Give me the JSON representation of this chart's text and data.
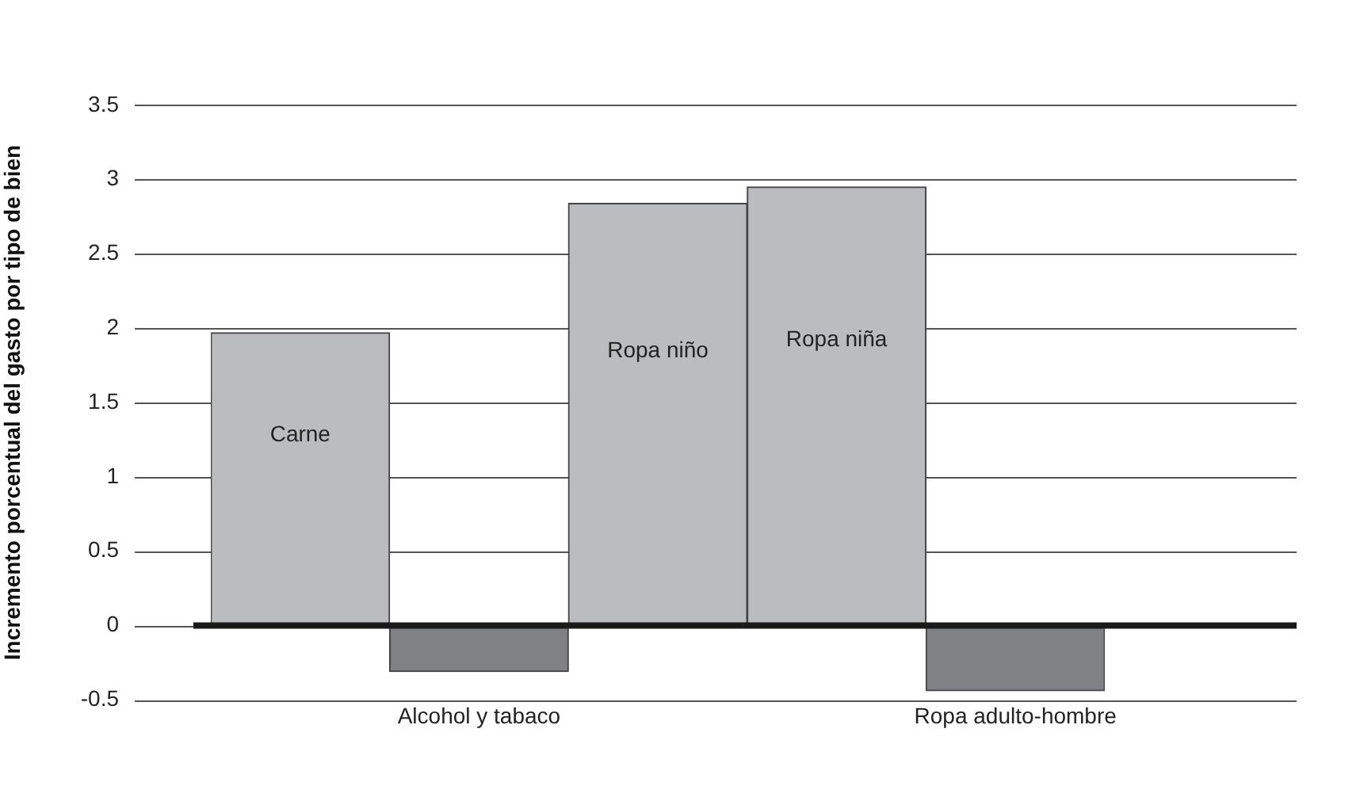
{
  "chart_data": {
    "type": "bar",
    "ylabel": "Incremento porcentual del gasto por tipo de bien",
    "categories": [
      "Carne",
      "Alcohol y tabaco",
      "Ropa niño",
      "Ropa niña",
      "Ropa adulto-hombre"
    ],
    "values": [
      1.97,
      -0.31,
      2.84,
      2.95,
      -0.44
    ],
    "colors": [
      "#bbbcc0",
      "#808184",
      "#bbbcc0",
      "#bbbcc0",
      "#808184"
    ],
    "ylim": [
      -0.5,
      3.5
    ],
    "yticks": [
      -0.5,
      0,
      0.5,
      1,
      1.5,
      2,
      2.5,
      3,
      3.5
    ],
    "grid": "y"
  }
}
